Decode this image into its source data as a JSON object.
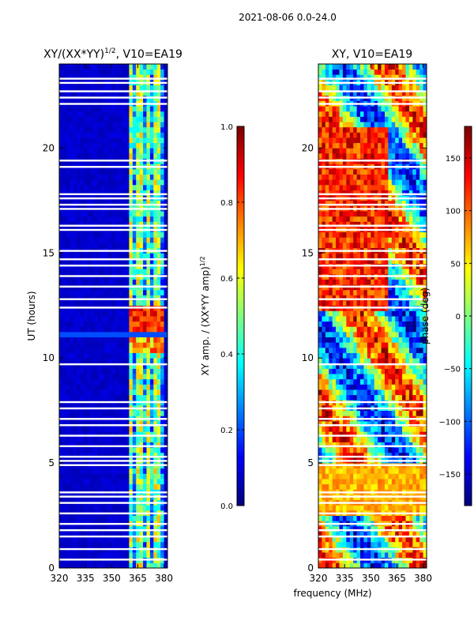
{
  "figure_title": "2021-08-06 0.0-24.0",
  "chart_data": [
    {
      "type": "heatmap",
      "title": "XY/(XX*YY)",
      "title_superscript": "1/2",
      "title_suffix": ", V10=EA19",
      "xlabel": "",
      "ylabel": "UT (hours)",
      "xlim": [
        320,
        382
      ],
      "ylim": [
        0,
        24
      ],
      "xticks": [
        320,
        335,
        350,
        365,
        380
      ],
      "yticks": [
        0,
        5,
        10,
        15,
        20
      ],
      "colorbar": {
        "label": "XY amp. / (XX*YY amp)",
        "label_superscript": "1/2",
        "range": [
          0.0,
          1.0
        ],
        "ticks": [
          "0.0",
          "0.2",
          "0.4",
          "0.6",
          "0.8",
          "1.0"
        ],
        "colormap": "jet"
      },
      "background_value": 0.05,
      "active_band_mhz": [
        360,
        380
      ],
      "flagged_hours": [
        0.4,
        0.9,
        1.5,
        1.8,
        2.1,
        2.6,
        3.1,
        3.4,
        3.6,
        4.9,
        5.1,
        5.3,
        5.8,
        6.3,
        6.8,
        7.1,
        7.6,
        7.9,
        9.7,
        12.4,
        12.8,
        13.4,
        13.9,
        14.4,
        14.7,
        15.1,
        16.1,
        16.3,
        17.1,
        17.3,
        17.6,
        17.8,
        19.1,
        19.4,
        22.1,
        22.4,
        22.7,
        23.1,
        23.3
      ]
    },
    {
      "type": "heatmap",
      "title": "XY, V10=EA19",
      "xlabel": "frequency (MHz)",
      "ylabel": "",
      "xlim": [
        320,
        382
      ],
      "ylim": [
        0,
        24
      ],
      "xticks": [
        320,
        335,
        350,
        365,
        380
      ],
      "yticks": [
        0,
        5,
        10,
        15,
        20
      ],
      "colorbar": {
        "label": "phase (deg)",
        "range": [
          -180,
          180
        ],
        "ticks": [
          "−150",
          "−100",
          "−50",
          "0",
          "50",
          "100",
          "150"
        ],
        "colormap": "jet"
      },
      "flagged_hours": [
        0.4,
        0.9,
        1.5,
        1.8,
        2.1,
        2.6,
        3.1,
        3.4,
        3.6,
        4.9,
        5.1,
        5.3,
        5.8,
        6.3,
        6.8,
        7.1,
        7.6,
        7.9,
        9.7,
        12.4,
        12.8,
        13.4,
        13.9,
        14.4,
        14.7,
        15.1,
        16.1,
        16.3,
        17.1,
        17.3,
        17.6,
        17.8,
        19.1,
        19.4,
        22.1,
        22.4,
        22.7,
        23.1,
        23.3
      ]
    }
  ]
}
